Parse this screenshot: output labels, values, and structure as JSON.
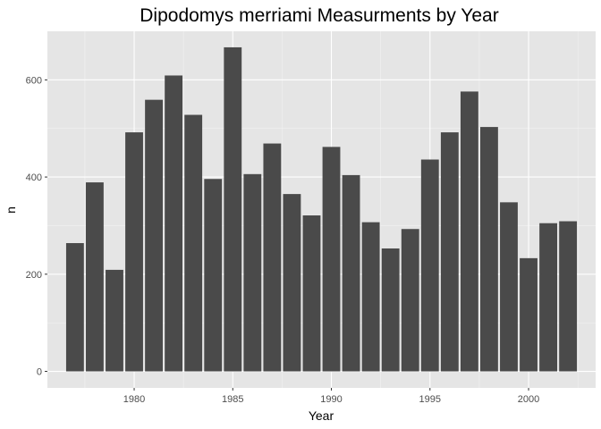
{
  "chart_data": {
    "type": "bar",
    "title": "Dipodomys merriami Measurments by Year",
    "xlabel": "Year",
    "ylabel": "n",
    "x": [
      1977,
      1978,
      1979,
      1980,
      1981,
      1982,
      1983,
      1984,
      1985,
      1986,
      1987,
      1988,
      1989,
      1990,
      1991,
      1992,
      1993,
      1994,
      1995,
      1996,
      1997,
      1998,
      1999,
      2000,
      2001,
      2002
    ],
    "values": [
      264,
      389,
      209,
      492,
      559,
      609,
      528,
      396,
      667,
      406,
      469,
      365,
      321,
      462,
      404,
      307,
      253,
      293,
      436,
      492,
      576,
      503,
      348,
      233,
      305,
      309
    ],
    "xlim": [
      1975.6,
      2003.4
    ],
    "ylim": [
      -34,
      700
    ],
    "xticks": [
      1980,
      1985,
      1990,
      1995,
      2000
    ],
    "yticks": [
      0,
      200,
      400,
      600
    ],
    "grid": true,
    "legend": "none",
    "colors": {
      "panel_background": "#e5e5e5",
      "grid_major": "#ffffff",
      "grid_minor": "#f2f2f2",
      "bar_fill": "#4a4a4a"
    }
  }
}
